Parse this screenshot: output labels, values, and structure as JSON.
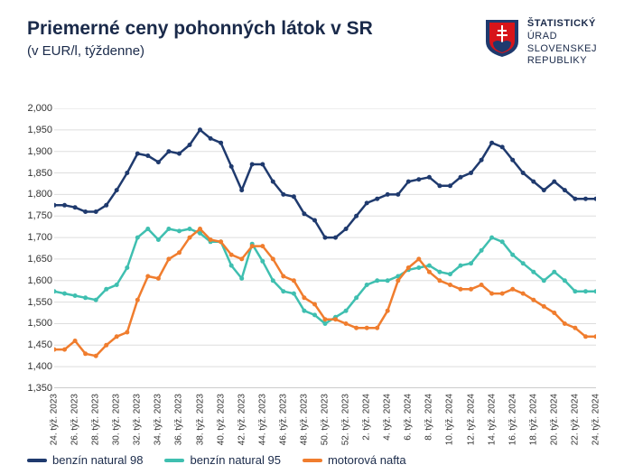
{
  "header": {
    "title": "Priemerné ceny pohonných látok v SR",
    "subtitle": "(v EUR/l, týždenne)",
    "org_line1": "ŠTATISTICKÝ",
    "org_line2": "ÚRAD",
    "org_line3": "SLOVENSKEJ",
    "org_line4": "REPUBLIKY"
  },
  "chart": {
    "type": "line",
    "ylim": [
      1350,
      2000
    ],
    "ytick_step": 50,
    "yticks": [
      1350,
      1400,
      1450,
      1500,
      1550,
      1600,
      1650,
      1700,
      1750,
      1800,
      1850,
      1900,
      1950,
      2000
    ],
    "ytick_labels": [
      "1,350",
      "1,400",
      "1,450",
      "1,500",
      "1,550",
      "1,600",
      "1,650",
      "1,700",
      "1,750",
      "1,800",
      "1,850",
      "1,900",
      "1,950",
      "2,000"
    ],
    "x_categories": [
      "24. týž. 2023",
      "25. týž. 2023",
      "26. týž. 2023",
      "27. týž. 2023",
      "28. týž. 2023",
      "29. týž. 2023",
      "30. týž. 2023",
      "31. týž. 2023",
      "32. týž. 2023",
      "33. týž. 2023",
      "34. týž. 2023",
      "35. týž. 2023",
      "36. týž. 2023",
      "37. týž. 2023",
      "38. týž. 2023",
      "39. týž. 2023",
      "40. týž. 2023",
      "41. týž. 2023",
      "42. týž. 2023",
      "43. týž. 2023",
      "44. týž. 2023",
      "45. týž. 2023",
      "46. týž. 2023",
      "47. týž. 2023",
      "48. týž. 2023",
      "49. týž. 2023",
      "50. týž. 2023",
      "51. týž. 2023",
      "52. týž. 2023",
      "1. týž. 2024",
      "2. týž. 2024",
      "3. týž. 2024",
      "4. týž. 2024",
      "5. týž. 2024",
      "6. týž. 2024",
      "7. týž. 2024",
      "8. týž. 2024",
      "9. týž. 2024",
      "10. týž. 2024",
      "11. týž. 2024",
      "12. týž. 2024",
      "13. týž. 2024",
      "14. týž. 2024",
      "15. týž. 2024",
      "16. týž. 2024",
      "17. týž. 2024",
      "18. týž. 2024",
      "19. týž. 2024",
      "20. týž. 2024",
      "21. týž. 2024",
      "22. týž. 2024",
      "23. týž. 2024",
      "24. týž. 2024"
    ],
    "x_tick_step": 2,
    "series": [
      {
        "name": "benzín natural 98",
        "color": "#1f3a6e",
        "values": [
          1775,
          1775,
          1770,
          1760,
          1760,
          1775,
          1810,
          1850,
          1895,
          1890,
          1875,
          1900,
          1895,
          1915,
          1950,
          1930,
          1920,
          1865,
          1810,
          1870,
          1870,
          1830,
          1800,
          1795,
          1755,
          1740,
          1700,
          1700,
          1720,
          1750,
          1780,
          1790,
          1800,
          1800,
          1830,
          1835,
          1840,
          1820,
          1820,
          1840,
          1850,
          1880,
          1920,
          1910,
          1880,
          1850,
          1830,
          1810,
          1830,
          1810,
          1790,
          1790,
          1790
        ]
      },
      {
        "name": "benzín natural 95",
        "color": "#3fbfb0",
        "values": [
          1575,
          1570,
          1565,
          1560,
          1555,
          1580,
          1590,
          1630,
          1700,
          1720,
          1695,
          1720,
          1715,
          1720,
          1710,
          1690,
          1690,
          1635,
          1605,
          1685,
          1645,
          1600,
          1575,
          1570,
          1530,
          1520,
          1500,
          1515,
          1530,
          1560,
          1590,
          1600,
          1600,
          1610,
          1625,
          1630,
          1635,
          1620,
          1615,
          1635,
          1640,
          1670,
          1700,
          1690,
          1660,
          1640,
          1620,
          1600,
          1620,
          1600,
          1575,
          1575,
          1575
        ]
      },
      {
        "name": "motorová nafta",
        "color": "#f07d2e",
        "values": [
          1440,
          1440,
          1460,
          1430,
          1425,
          1450,
          1470,
          1480,
          1555,
          1610,
          1605,
          1650,
          1665,
          1700,
          1720,
          1695,
          1690,
          1660,
          1650,
          1680,
          1680,
          1650,
          1610,
          1600,
          1560,
          1545,
          1510,
          1510,
          1500,
          1490,
          1490,
          1490,
          1530,
          1600,
          1630,
          1650,
          1620,
          1600,
          1590,
          1580,
          1580,
          1590,
          1570,
          1570,
          1580,
          1570,
          1555,
          1540,
          1525,
          1500,
          1490,
          1470,
          1470
        ]
      }
    ],
    "background_color": "#ffffff",
    "grid_color": "#dddddd",
    "axis_color": "#999999",
    "line_width": 2.5,
    "marker_radius": 2.5,
    "title_fontsize": 21,
    "subtitle_fontsize": 15,
    "axis_fontsize": 11
  },
  "legend": {
    "items": [
      {
        "label": "benzín natural 98",
        "color": "#1f3a6e"
      },
      {
        "label": "benzín natural 95",
        "color": "#3fbfb0"
      },
      {
        "label": "motorová nafta",
        "color": "#f07d2e"
      }
    ]
  }
}
